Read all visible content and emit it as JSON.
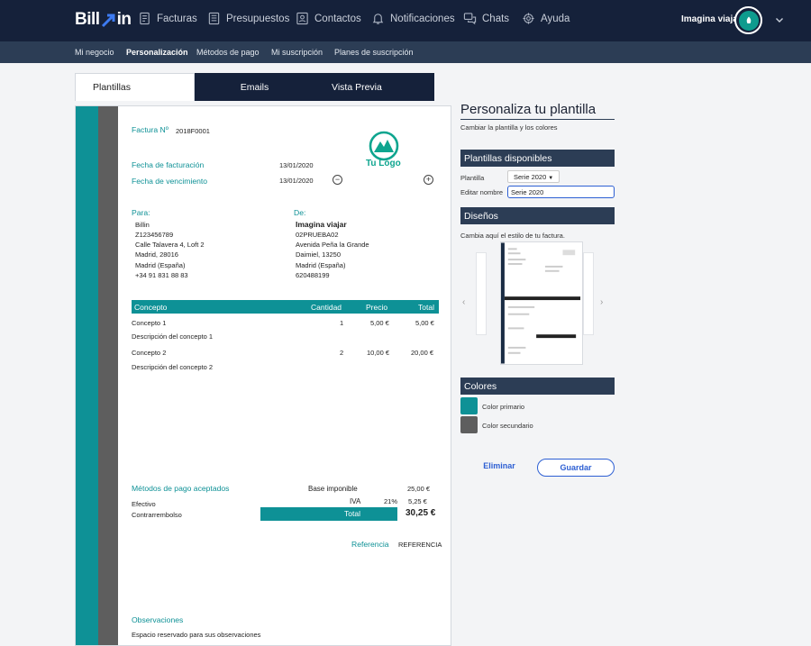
{
  "header": {
    "logo_left": "Bill",
    "logo_right": "in",
    "nav": [
      {
        "label": "Facturas",
        "icon": "invoices-icon"
      },
      {
        "label": "Presupuestos",
        "icon": "budgets-icon"
      },
      {
        "label": "Contactos",
        "icon": "contacts-icon"
      },
      {
        "label": "Notificaciones",
        "icon": "bell-icon"
      },
      {
        "label": "Chats",
        "icon": "chat-icon"
      },
      {
        "label": "Ayuda",
        "icon": "help-icon"
      }
    ],
    "user_name": "Imagina viajar"
  },
  "subnav": [
    {
      "label": "Mi negocio",
      "active": false
    },
    {
      "label": "Personalización",
      "active": true
    },
    {
      "label": "Métodos de pago",
      "active": false
    },
    {
      "label": "Mi suscripción",
      "active": false
    },
    {
      "label": "Planes de suscripción",
      "active": false
    }
  ],
  "tabs": [
    {
      "label": "Plantillas",
      "active": true
    },
    {
      "label": "Emails",
      "active": false
    },
    {
      "label": "Vista Previa",
      "active": false
    }
  ],
  "invoice": {
    "number_label": "Factura Nº",
    "number": "2018F0001",
    "logo_text": "Tu Logo",
    "issue_label": "Fecha de facturación",
    "issue_date": "13/01/2020",
    "due_label": "Fecha de vencimiento",
    "due_date": "13/01/2020",
    "to_label": "Para:",
    "to_lines": [
      "Billin",
      "Z123456789",
      "Calle Talavera 4, Loft 2",
      "Madrid, 28016",
      "Madrid (España)",
      "+34 91 831 88 83"
    ],
    "from_label": "De:",
    "from_name": "Imagina viajar",
    "from_lines": [
      "02PRUEBA02",
      "Avenida Peña la Grande",
      "Daimiel, 13250",
      "Madrid (España)",
      "620488199"
    ],
    "table_headers": [
      "Concepto",
      "Cantidad",
      "Precio",
      "Total"
    ],
    "rows": [
      {
        "concept": "Concepto 1",
        "qty": "1",
        "price": "5,00 €",
        "total": "5,00 €",
        "desc": "Descripción del concepto 1"
      },
      {
        "concept": "Concepto 2",
        "qty": "2",
        "price": "10,00 €",
        "total": "20,00 €",
        "desc": "Descripción del concepto 2"
      }
    ],
    "payment_label": "Métodos de pago aceptados",
    "payment_methods": [
      "Efectivo",
      "Contrarrembolso"
    ],
    "base_label": "Base imponible",
    "base_value": "25,00 €",
    "iva_label": "IVA",
    "iva_pct": "21%",
    "iva_value": "5,25 €",
    "total_label": "Total",
    "total_value": "30,25 €",
    "ref_label": "Referencia",
    "ref_value": "REFERENCIA",
    "obs_label": "Observaciones",
    "obs_text": "Espacio reservado para sus observaciones",
    "primary_color": "#0e9196",
    "secondary_color": "#5e5e5e"
  },
  "panel": {
    "title": "Personaliza tu plantilla",
    "subtitle": "Cambiar la plantilla y los colores",
    "templates_head": "Plantillas disponibles",
    "template_label": "Plantilla",
    "template_value": "Serie 2020",
    "edit_name_label": "Editar nombre",
    "edit_name_value": "Serie 2020",
    "designs_head": "Diseños",
    "designs_text": "Cambia aquí el estilo de tu factura.",
    "colors_head": "Colores",
    "primary_label": "Color primario",
    "secondary_label": "Color secundario",
    "cancel_label": "Eliminar",
    "save_label": "Guardar"
  }
}
